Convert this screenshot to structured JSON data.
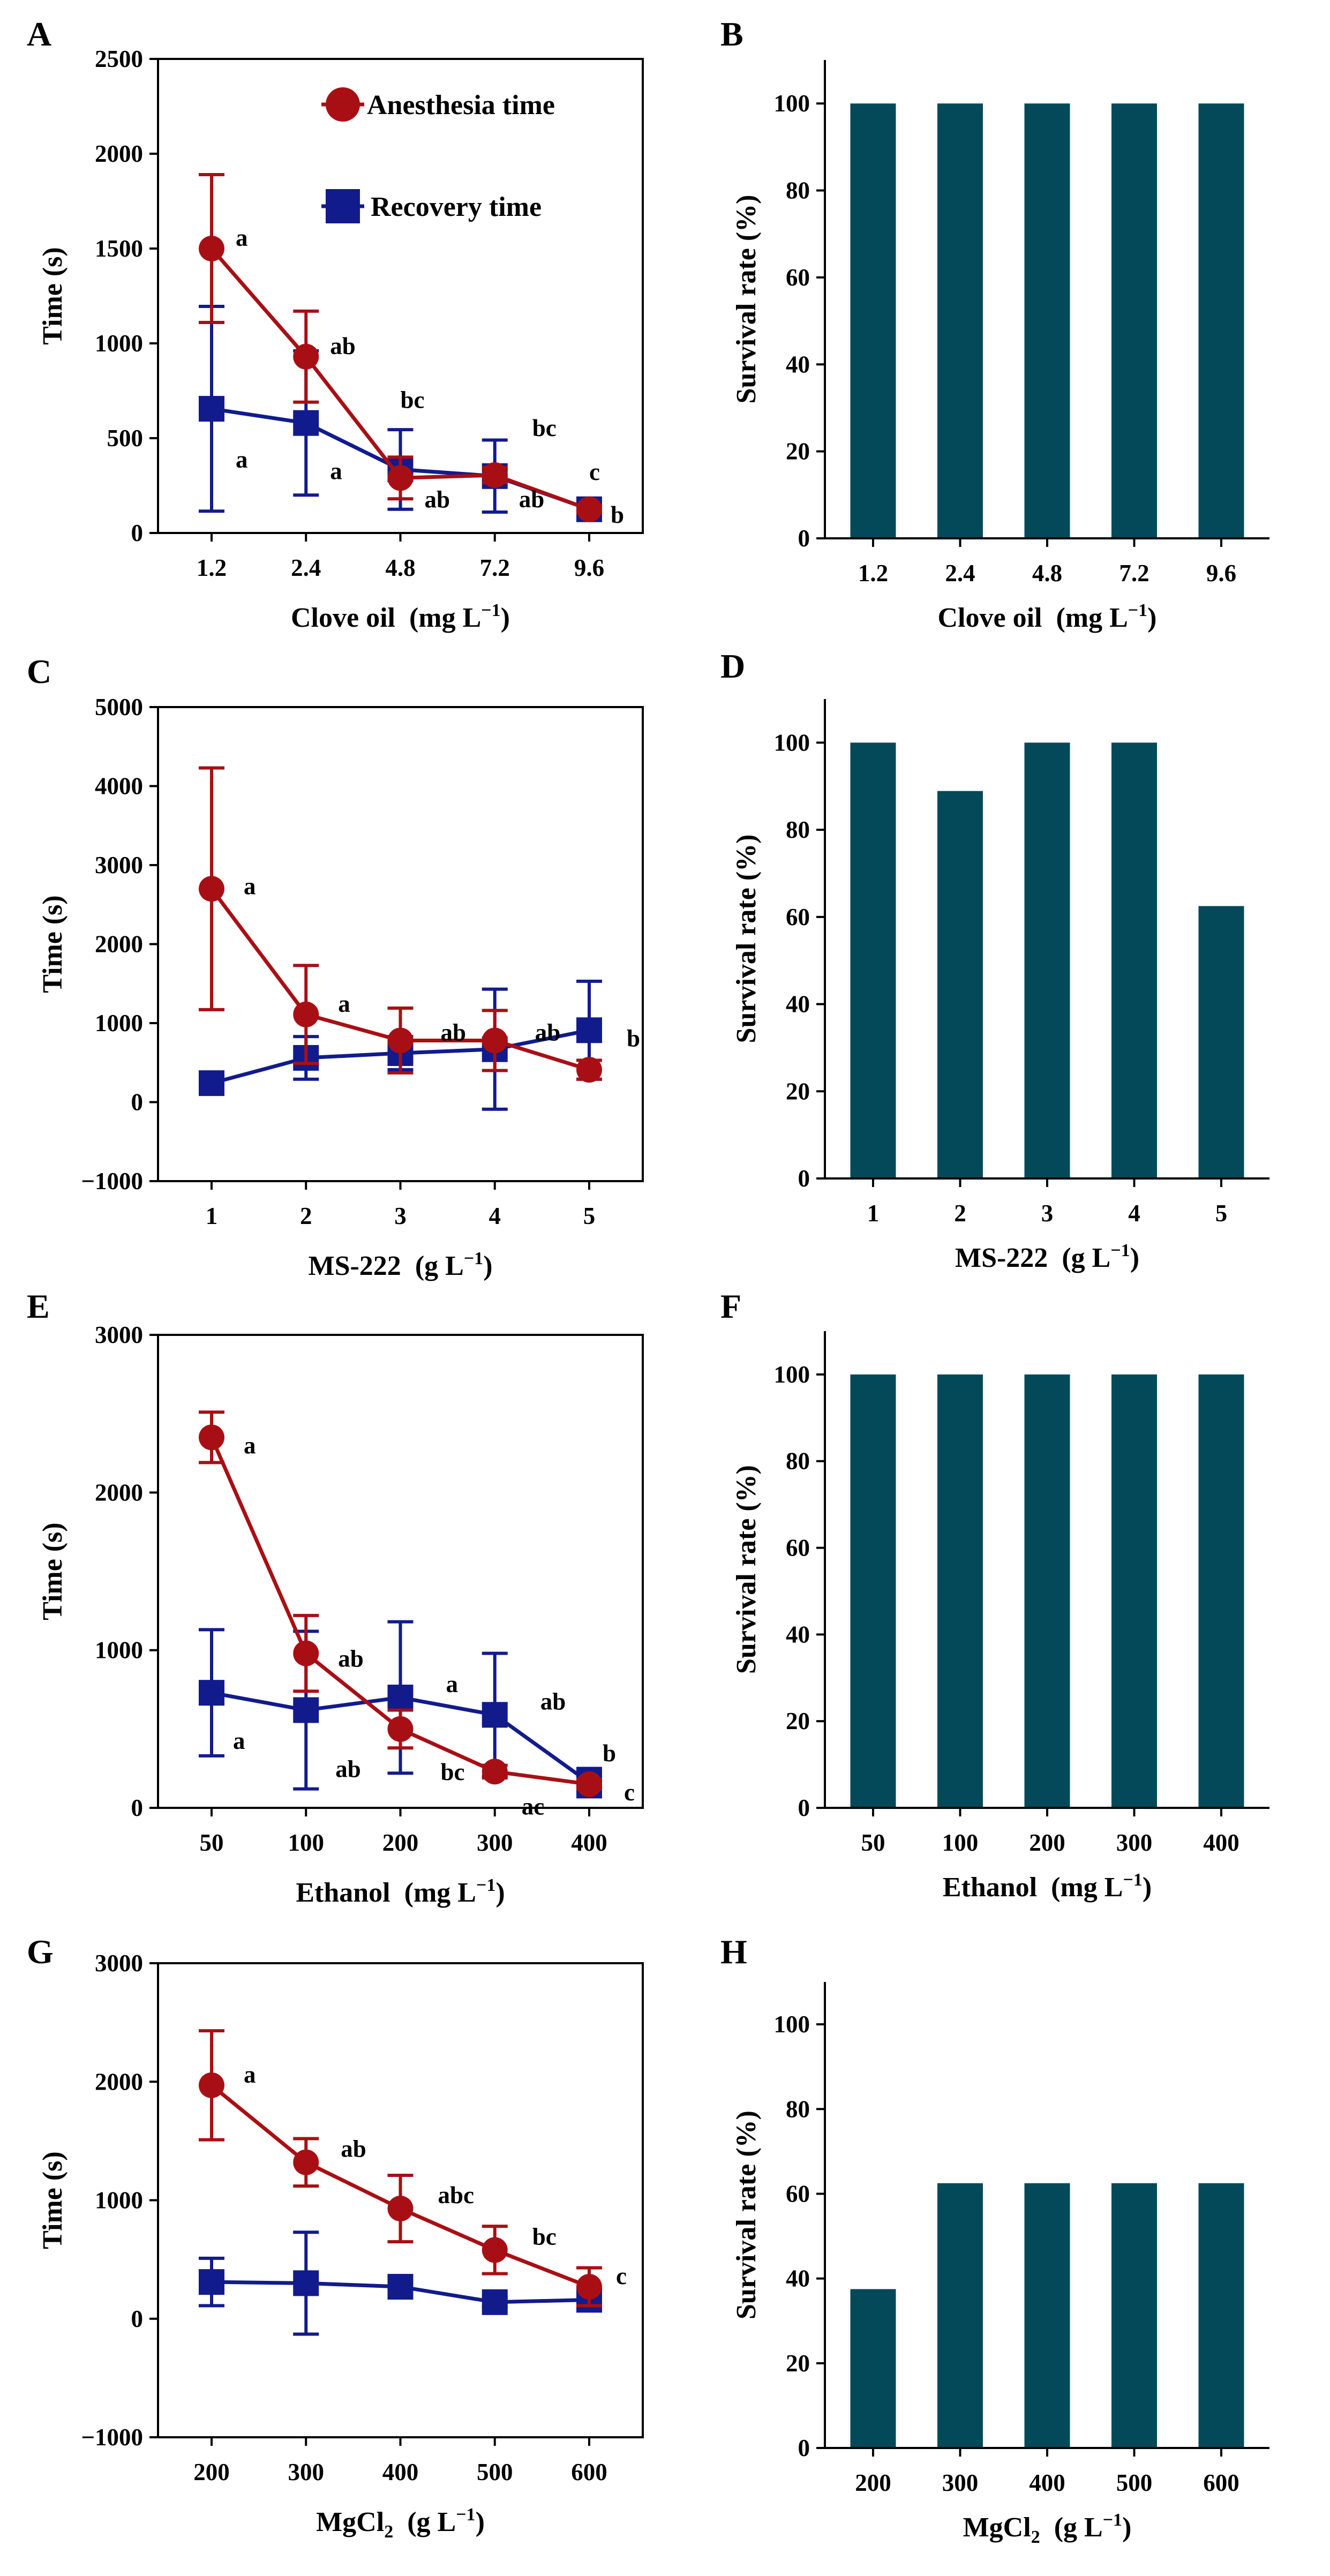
{
  "colors": {
    "anesthesia": "#A80F14",
    "recovery": "#121B8C",
    "bar": "#04495A",
    "axis": "#000000"
  },
  "legend": {
    "anesthesia": "Anesthesia time",
    "recovery": "Recovery time"
  },
  "chart_data": [
    {
      "panel": "A",
      "type": "line",
      "categories": [
        "1.2",
        "2.4",
        "4.8",
        "7.2",
        "9.6"
      ],
      "xlabel_main": "Clove oil",
      "xlabel_unit_pre": "(mg L",
      "xlabel_sup": "−1",
      "xlabel_unit_post": ")",
      "ylabel": "Time (s)",
      "ylim": [
        0,
        2500
      ],
      "yticks": [
        0,
        500,
        1000,
        1500,
        2000,
        2500
      ],
      "legend_position": "top-right",
      "series": [
        {
          "name": "Anesthesia time",
          "values": [
            1500,
            930,
            290,
            305,
            125
          ],
          "errors": [
            390,
            240,
            110,
            40,
            20
          ],
          "labels": [
            "a",
            "ab",
            "ab",
            "ab",
            "c"
          ]
        },
        {
          "name": "Recovery time",
          "values": [
            655,
            580,
            335,
            300,
            125
          ],
          "errors": [
            540,
            380,
            210,
            190,
            25
          ],
          "labels": [
            "a",
            "a",
            "bc",
            "bc",
            "b"
          ]
        }
      ]
    },
    {
      "panel": "B",
      "type": "bar",
      "categories": [
        "1.2",
        "2.4",
        "4.8",
        "7.2",
        "9.6"
      ],
      "values": [
        100,
        100,
        100,
        100,
        100
      ],
      "xlabel_main": "Clove oil",
      "xlabel_unit_pre": "(mg L",
      "xlabel_sup": "−1",
      "xlabel_unit_post": ")",
      "ylabel": "Survival rate (%)",
      "ylim": [
        0,
        110
      ],
      "yticks": [
        0,
        20,
        40,
        60,
        80,
        100
      ]
    },
    {
      "panel": "C",
      "type": "line",
      "categories": [
        "1",
        "2",
        "3",
        "4",
        "5"
      ],
      "xlabel_main": "MS-222",
      "xlabel_unit_pre": "(g L",
      "xlabel_sup": "−1",
      "xlabel_unit_post": ")",
      "ylabel": "Time (s)",
      "ylim": [
        -1000,
        5000
      ],
      "yticks": [
        -1000,
        0,
        1000,
        2000,
        3000,
        4000,
        5000
      ],
      "ytick_labels": [
        "−1000",
        "0",
        "1000",
        "2000",
        "3000",
        "4000",
        "5000"
      ],
      "series": [
        {
          "name": "Anesthesia time",
          "values": [
            2700,
            1110,
            780,
            780,
            410
          ],
          "errors": [
            1530,
            620,
            410,
            380,
            120
          ],
          "labels": [
            "a",
            "a",
            "ab",
            "ab",
            ""
          ]
        },
        {
          "name": "Recovery time",
          "values": [
            240,
            560,
            620,
            670,
            910
          ],
          "errors": [
            80,
            270,
            210,
            760,
            620
          ],
          "labels": [
            "",
            "",
            "",
            "",
            "b"
          ]
        }
      ]
    },
    {
      "panel": "D",
      "type": "bar",
      "categories": [
        "1",
        "2",
        "3",
        "4",
        "5"
      ],
      "values": [
        100,
        88.9,
        100,
        100,
        62.5
      ],
      "xlabel_main": "MS-222",
      "xlabel_unit_pre": "(g L",
      "xlabel_sup": "−1",
      "xlabel_unit_post": ")",
      "ylabel": "Survival rate (%)",
      "ylim": [
        0,
        110
      ],
      "yticks": [
        0,
        20,
        40,
        60,
        80,
        100
      ]
    },
    {
      "panel": "E",
      "type": "line",
      "categories": [
        "50",
        "100",
        "200",
        "300",
        "400"
      ],
      "xlabel_main": "Ethanol",
      "xlabel_unit_pre": "(mg L",
      "xlabel_sup": "−1",
      "xlabel_unit_post": ")",
      "ylabel": "Time (s)",
      "ylim": [
        0,
        3000
      ],
      "yticks": [
        0,
        1000,
        2000,
        3000
      ],
      "series": [
        {
          "name": "Anesthesia time",
          "values": [
            2350,
            980,
            500,
            230,
            150
          ],
          "errors": [
            160,
            240,
            120,
            40,
            30
          ],
          "labels": [
            "a",
            "ab",
            "bc",
            "ac",
            "c"
          ]
        },
        {
          "name": "Recovery time",
          "values": [
            730,
            620,
            700,
            590,
            160
          ],
          "errors": [
            400,
            500,
            480,
            390,
            90
          ],
          "labels": [
            "a",
            "ab",
            "a",
            "ab",
            "b"
          ]
        }
      ]
    },
    {
      "panel": "F",
      "type": "bar",
      "categories": [
        "50",
        "100",
        "200",
        "300",
        "400"
      ],
      "values": [
        100,
        100,
        100,
        100,
        100
      ],
      "xlabel_main": "Ethanol",
      "xlabel_unit_pre": "(mg L",
      "xlabel_sup": "−1",
      "xlabel_unit_post": ")",
      "ylabel": "Survival rate (%)",
      "ylim": [
        0,
        110
      ],
      "yticks": [
        0,
        20,
        40,
        60,
        80,
        100
      ]
    },
    {
      "panel": "G",
      "type": "line",
      "categories": [
        "200",
        "300",
        "400",
        "500",
        "600"
      ],
      "xlabel_main": "MgCl",
      "xlabel_sub": "2",
      "xlabel_unit_pre": "(g L",
      "xlabel_sup": "−1",
      "xlabel_unit_post": ")",
      "ylabel": "Time (s)",
      "ylim": [
        -1000,
        3000
      ],
      "yticks": [
        -1000,
        0,
        1000,
        2000,
        3000
      ],
      "ytick_labels": [
        "−1000",
        "0",
        "1000",
        "2000",
        "3000"
      ],
      "series": [
        {
          "name": "Anesthesia time",
          "values": [
            1970,
            1320,
            930,
            580,
            270
          ],
          "errors": [
            460,
            200,
            280,
            200,
            160
          ],
          "labels": [
            "a",
            "ab",
            "abc",
            "bc",
            "c"
          ]
        },
        {
          "name": "Recovery time",
          "values": [
            310,
            300,
            270,
            140,
            160
          ],
          "errors": [
            200,
            430,
            60,
            40,
            40
          ],
          "labels": [
            "",
            "",
            "",
            "",
            ""
          ]
        }
      ]
    },
    {
      "panel": "H",
      "type": "bar",
      "categories": [
        "200",
        "300",
        "400",
        "500",
        "600"
      ],
      "values": [
        37.5,
        62.5,
        62.5,
        62.5,
        62.5
      ],
      "xlabel_main": "MgCl",
      "xlabel_sub": "2",
      "xlabel_unit_pre": "(g L",
      "xlabel_sup": "−1",
      "xlabel_unit_post": ")",
      "ylabel": "Survival rate (%)",
      "ylim": [
        0,
        110
      ],
      "yticks": [
        0,
        20,
        40,
        60,
        80,
        100
      ]
    }
  ]
}
